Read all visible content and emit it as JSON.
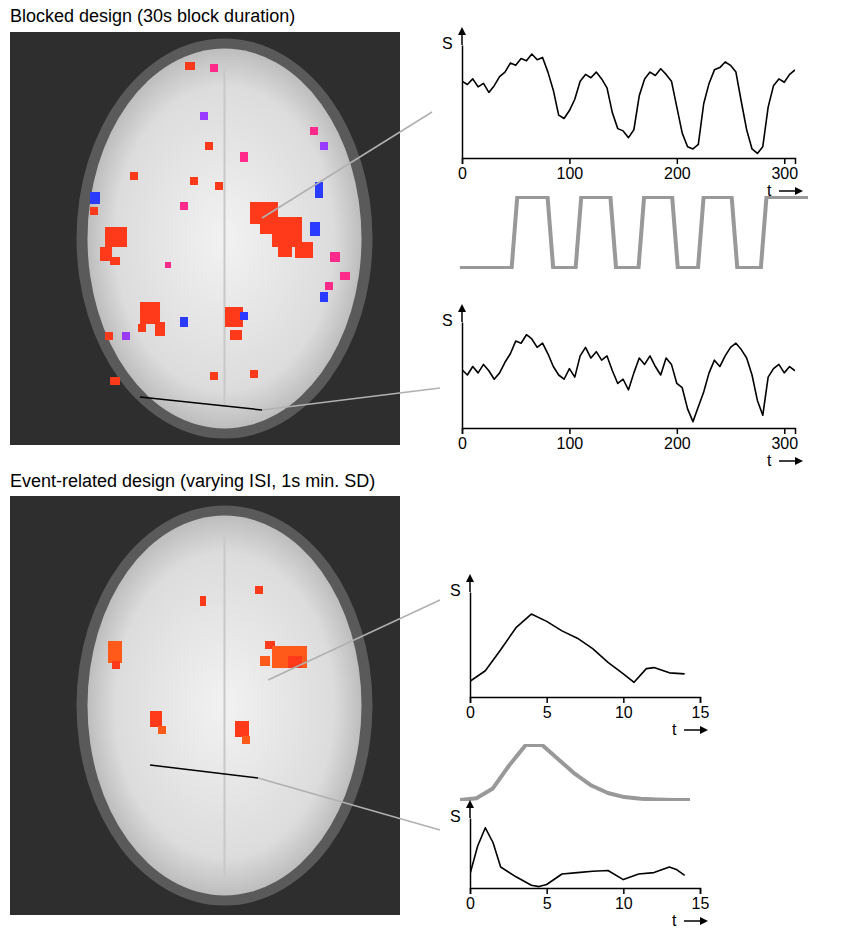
{
  "chart_data": [
    {
      "type": "line",
      "title": "Blocked design (30s block duration)",
      "x_label": "t",
      "y_label": "S",
      "x": [
        0,
        5,
        10,
        15,
        20,
        25,
        30,
        35,
        40,
        45,
        50,
        55,
        60,
        65,
        70,
        75,
        80,
        85,
        90,
        95,
        100,
        105,
        110,
        115,
        120,
        125,
        130,
        135,
        140,
        145,
        150,
        155,
        160,
        165,
        170,
        175,
        180,
        185,
        190,
        195,
        200,
        205,
        210,
        215,
        220,
        225,
        230,
        235,
        240,
        245,
        250,
        255,
        260,
        265,
        270,
        275,
        280,
        285,
        290,
        295,
        300,
        305,
        310
      ],
      "values": [
        6.8,
        6.5,
        7.0,
        6.3,
        6.6,
        5.8,
        6.4,
        7.2,
        7.6,
        8.4,
        8.2,
        8.8,
        8.6,
        9.2,
        8.7,
        8.9,
        7.6,
        6.0,
        3.8,
        3.5,
        4.2,
        5.2,
        6.8,
        7.4,
        7.1,
        7.6,
        7.0,
        6.2,
        4.0,
        2.6,
        2.4,
        1.8,
        2.5,
        5.5,
        7.0,
        7.6,
        7.3,
        7.9,
        7.4,
        6.8,
        4.5,
        2.2,
        1.0,
        0.8,
        1.2,
        4.8,
        6.6,
        7.8,
        8.0,
        8.5,
        8.2,
        7.6,
        5.0,
        2.5,
        0.8,
        0.4,
        1.0,
        4.5,
        6.4,
        7.0,
        6.7,
        7.4,
        7.8
      ],
      "color": "#000000",
      "xlim": [
        0,
        310
      ],
      "ylim": [
        0,
        10
      ],
      "xticks": [
        0,
        100,
        200,
        300
      ],
      "tick_labels": "x"
    },
    {
      "type": "line",
      "x": [
        0,
        46,
        51,
        78,
        83,
        103,
        108,
        134,
        139,
        159,
        164,
        189,
        194,
        212,
        217,
        242,
        247,
        268,
        273,
        310
      ],
      "values": [
        0,
        0,
        1,
        1,
        0,
        0,
        1,
        1,
        0,
        0,
        1,
        1,
        0,
        0,
        1,
        1,
        0,
        0,
        1,
        1
      ],
      "color": "#999999",
      "tick_labels": false
    },
    {
      "type": "line",
      "x_label": "t",
      "y_label": "S",
      "x": [
        0,
        5,
        10,
        15,
        20,
        25,
        30,
        35,
        40,
        45,
        50,
        55,
        60,
        65,
        70,
        75,
        80,
        85,
        90,
        95,
        100,
        105,
        110,
        115,
        120,
        125,
        130,
        135,
        140,
        145,
        150,
        155,
        160,
        165,
        170,
        175,
        180,
        185,
        190,
        195,
        200,
        205,
        210,
        215,
        220,
        225,
        230,
        235,
        240,
        245,
        250,
        255,
        260,
        265,
        270,
        275,
        280,
        285,
        290,
        295,
        300,
        305,
        310
      ],
      "values": [
        5.5,
        5.0,
        5.8,
        5.2,
        6.0,
        5.4,
        4.6,
        5.2,
        6.2,
        7.0,
        8.2,
        8.0,
        8.8,
        8.4,
        7.6,
        8.0,
        7.0,
        5.8,
        5.0,
        4.6,
        5.6,
        4.8,
        6.8,
        7.6,
        6.6,
        7.2,
        6.4,
        6.8,
        5.4,
        4.2,
        4.6,
        3.6,
        5.2,
        6.6,
        6.0,
        6.8,
        5.8,
        5.0,
        6.6,
        6.0,
        4.2,
        3.8,
        1.8,
        0.6,
        2.0,
        3.4,
        5.2,
        6.4,
        5.8,
        6.8,
        7.6,
        8.0,
        7.4,
        6.6,
        5.0,
        2.6,
        1.2,
        4.8,
        5.6,
        6.0,
        5.2,
        5.8,
        5.4
      ],
      "color": "#000000",
      "xlim": [
        0,
        310
      ],
      "ylim": [
        0,
        10
      ],
      "xticks": [
        0,
        100,
        200,
        300
      ],
      "tick_labels": "x"
    },
    {
      "type": "line",
      "title": "Event-related design (varying ISI, 1s min. SD)",
      "x_label": "t",
      "y_label": "S",
      "x": [
        0,
        1,
        2,
        3,
        4,
        5,
        6,
        7,
        8,
        9,
        10,
        10.7,
        11.5,
        12,
        13,
        14
      ],
      "values": [
        1.5,
        2.5,
        4.5,
        6.6,
        7.9,
        7.2,
        6.3,
        5.6,
        4.6,
        3.3,
        2.2,
        1.4,
        2.7,
        2.8,
        2.3,
        2.2
      ],
      "color": "#000000",
      "xlim": [
        0,
        15
      ],
      "ylim": [
        0,
        10
      ],
      "xticks": [
        0,
        5,
        10,
        15
      ],
      "tick_labels": "x"
    },
    {
      "type": "line",
      "x": [
        0,
        1,
        2,
        3,
        4,
        5,
        6,
        7,
        8,
        9,
        10,
        11,
        12,
        13,
        14
      ],
      "values": [
        0,
        0.03,
        0.2,
        0.6,
        0.95,
        0.95,
        0.7,
        0.45,
        0.25,
        0.12,
        0.05,
        0.02,
        0.01,
        0,
        0
      ],
      "color": "#999999",
      "tick_labels": false
    },
    {
      "type": "line",
      "x_label": "t",
      "y_label": "S",
      "x": [
        0,
        0.5,
        1,
        1.5,
        2,
        3,
        4,
        4.5,
        5,
        6,
        7,
        8,
        9,
        10,
        11,
        12,
        13,
        13.5,
        14
      ],
      "values": [
        2.0,
        6.0,
        8.6,
        6.5,
        3.0,
        1.6,
        0.4,
        0.2,
        0.5,
        2.0,
        2.2,
        2.4,
        2.5,
        1.2,
        2.0,
        2.2,
        3.0,
        2.6,
        1.8
      ],
      "color": "#000000",
      "xlim": [
        0,
        15
      ],
      "ylim": [
        0,
        10
      ],
      "xticks": [
        0,
        5,
        10,
        15
      ],
      "tick_labels": "x"
    }
  ]
}
